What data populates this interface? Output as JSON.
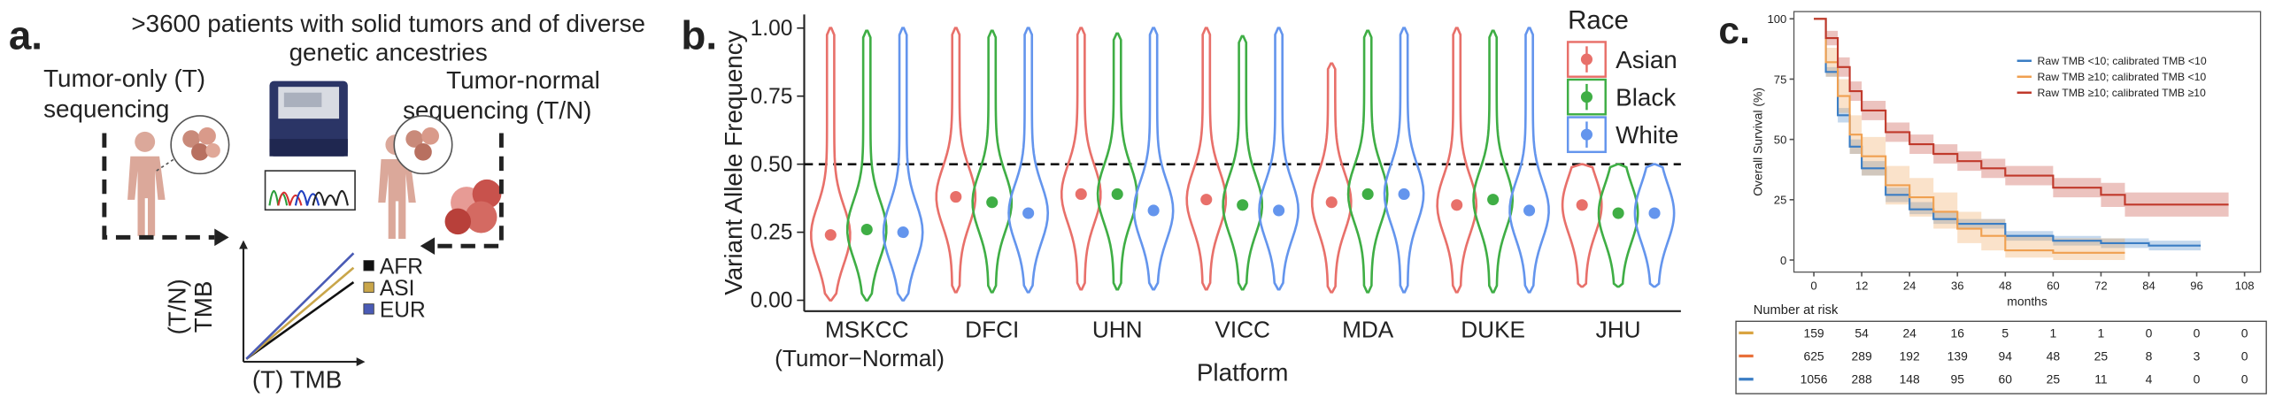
{
  "panel_a": {
    "label": "a.",
    "title": [
      ">3600 patients with  solid tumors and of diverse",
      "genetic ancestries"
    ],
    "left_label": [
      "Tumor-only (T)",
      "sequencing"
    ],
    "right_label": [
      "Tumor-normal",
      "sequencing (T/N)"
    ],
    "schematic": {
      "y_label": [
        "(T/N)",
        "TMB"
      ],
      "x_label": "(T) TMB",
      "legend": [
        {
          "name": "AFR",
          "color": "#111111"
        },
        {
          "name": "ASI",
          "color": "#c9a64a"
        },
        {
          "name": "EUR",
          "color": "#4a5bb5"
        }
      ]
    }
  },
  "chart_data": [
    {
      "type": "violin",
      "label": "b.",
      "y_label": "Variant Allele Frequency",
      "x_label": "Platform",
      "categories": [
        "MSKCC",
        "DFCI",
        "UHN",
        "VICC",
        "MDA",
        "DUKE",
        "JHU"
      ],
      "category_note": "(Tumor−Normal)",
      "ylim": [
        -0.04,
        1.05
      ],
      "yticks": [
        {
          "value": 0,
          "label": "0.00"
        },
        {
          "value": 0.25,
          "label": "0.25"
        },
        {
          "value": 0.5,
          "label": "0.50"
        },
        {
          "value": 0.75,
          "label": "0.75"
        },
        {
          "value": 1,
          "label": "1.00"
        }
      ],
      "reference_line": 0.5,
      "legend_title": "Race",
      "legend": "right",
      "series": [
        {
          "name": "Asian",
          "color": "#e8706a",
          "values": [
            0.24,
            0.38,
            0.39,
            0.37,
            0.36,
            0.35,
            0.35
          ],
          "min": [
            0.0,
            0.03,
            0.04,
            0.04,
            0.03,
            0.03,
            0.05
          ],
          "max": [
            1.0,
            1.0,
            1.0,
            1.0,
            0.87,
            1.0,
            0.5
          ]
        },
        {
          "name": "Black",
          "color": "#3fae45",
          "values": [
            0.26,
            0.36,
            0.39,
            0.35,
            0.39,
            0.37,
            0.32
          ],
          "min": [
            0.0,
            0.03,
            0.04,
            0.04,
            0.03,
            0.03,
            0.05
          ],
          "max": [
            0.99,
            0.99,
            0.98,
            0.97,
            0.99,
            0.99,
            0.5
          ]
        },
        {
          "name": "White",
          "color": "#6495ed",
          "values": [
            0.25,
            0.32,
            0.33,
            0.33,
            0.39,
            0.33,
            0.32
          ],
          "min": [
            0.0,
            0.03,
            0.04,
            0.04,
            0.03,
            0.03,
            0.05
          ],
          "max": [
            1.0,
            1.0,
            1.0,
            1.0,
            1.0,
            1.0,
            0.5
          ]
        }
      ]
    },
    {
      "type": "kaplan-meier",
      "label": "c.",
      "y_label": "Overall Survival (%)",
      "x_label": "months",
      "xlim": [
        -5,
        112
      ],
      "xticks": [
        0,
        12,
        24,
        36,
        48,
        60,
        72,
        84,
        96,
        108
      ],
      "ylim": [
        -5,
        103
      ],
      "yticks": [
        0,
        25,
        50,
        75,
        100
      ],
      "legend": "top-right",
      "series": [
        {
          "name": "Raw TMB <10; calibrated TMB <10",
          "color": "#3a7dc4",
          "x": [
            0,
            3,
            6,
            9,
            12,
            18,
            24,
            30,
            36,
            48,
            60,
            72,
            84,
            96,
            97
          ],
          "values": [
            100,
            78,
            60,
            47,
            38,
            27,
            21,
            17,
            15,
            10,
            8,
            7,
            6,
            6,
            6
          ],
          "lower": [
            100,
            76,
            57,
            44,
            35,
            24,
            19,
            15,
            13,
            8,
            6,
            5,
            4,
            4,
            4
          ],
          "upper": [
            100,
            80,
            63,
            50,
            41,
            30,
            24,
            20,
            17,
            12,
            10,
            9,
            8,
            8,
            8
          ]
        },
        {
          "name": "Raw TMB ≥10; calibrated TMB <10",
          "color": "#f0a050",
          "x": [
            0,
            3,
            6,
            9,
            12,
            18,
            24,
            30,
            36,
            42,
            48,
            60,
            72,
            78
          ],
          "values": [
            100,
            82,
            68,
            52,
            43,
            31,
            26,
            20,
            13,
            10,
            4,
            3,
            3,
            3
          ],
          "lower": [
            100,
            76,
            61,
            44,
            35,
            23,
            18,
            13,
            7,
            4,
            1,
            0,
            0,
            0
          ],
          "upper": [
            100,
            88,
            75,
            60,
            51,
            39,
            34,
            28,
            20,
            17,
            10,
            9,
            9,
            9
          ]
        },
        {
          "name": "Raw TMB ≥10; calibrated TMB ≥10",
          "color": "#c0392b",
          "x": [
            0,
            3,
            6,
            9,
            12,
            18,
            24,
            30,
            36,
            42,
            48,
            60,
            72,
            78,
            84,
            96,
            104
          ],
          "values": [
            100,
            92,
            80,
            70,
            62,
            53,
            48,
            44,
            41,
            38,
            35,
            30,
            27,
            23,
            23,
            23,
            23
          ],
          "lower": [
            100,
            89,
            76,
            66,
            58,
            49,
            44,
            40,
            37,
            34,
            31,
            26,
            22,
            18,
            18,
            18,
            18
          ],
          "upper": [
            100,
            95,
            84,
            74,
            66,
            57,
            52,
            48,
            45,
            42,
            39,
            34,
            32,
            28,
            28,
            28,
            28
          ]
        }
      ],
      "risk_table": {
        "title": "Number at risk",
        "rows": [
          {
            "color": "#d9a441",
            "values": [
              159,
              54,
              24,
              16,
              5,
              1,
              1,
              0,
              0,
              0
            ]
          },
          {
            "color": "#e8703a",
            "values": [
              625,
              289,
              192,
              139,
              94,
              48,
              25,
              8,
              3,
              0
            ]
          },
          {
            "color": "#3a7dc4",
            "values": [
              1056,
              288,
              148,
              95,
              60,
              25,
              11,
              4,
              0,
              0
            ]
          }
        ]
      }
    }
  ]
}
